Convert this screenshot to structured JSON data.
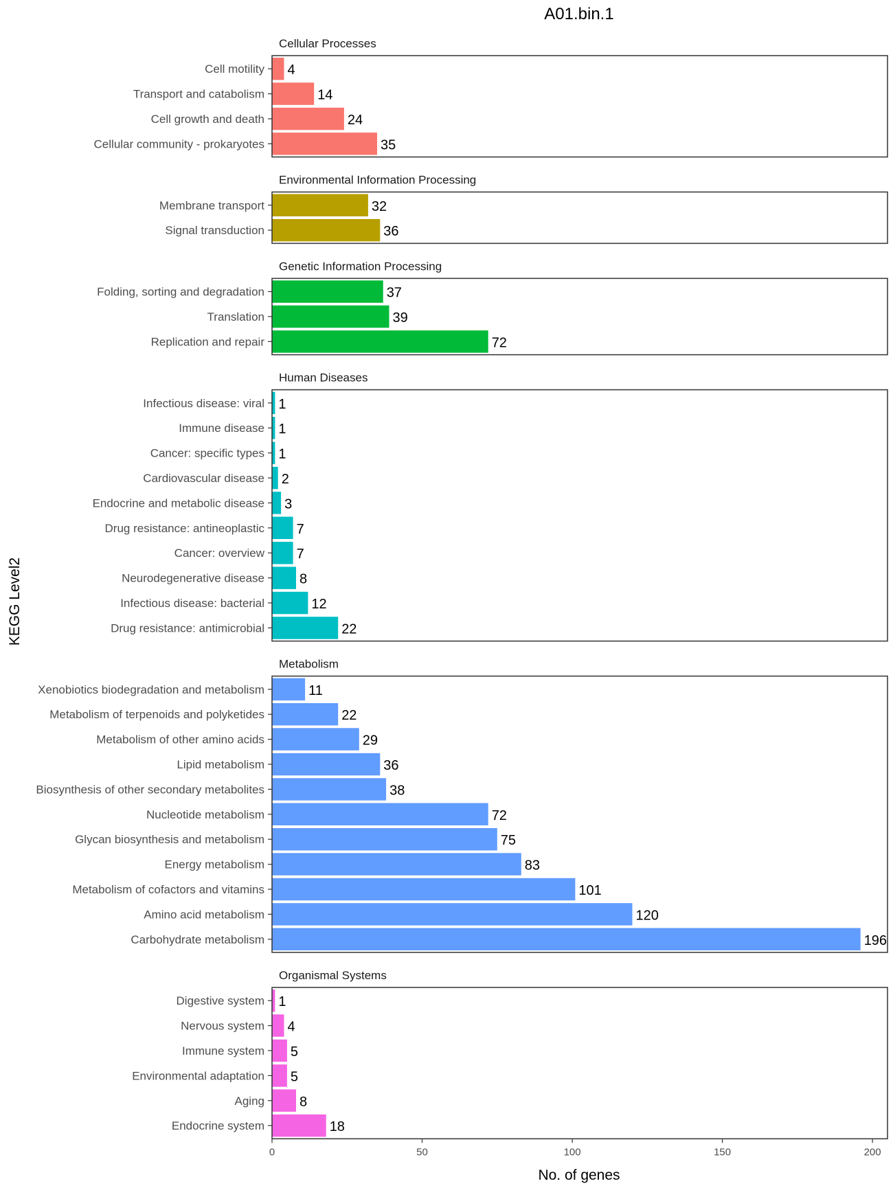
{
  "chart_data": {
    "type": "bar",
    "orientation": "horizontal",
    "title": "A01.bin.1",
    "xlabel": "No. of genes",
    "ylabel": "KEGG Level2",
    "xlim": [
      0,
      205
    ],
    "xticks": [
      0,
      50,
      100,
      150,
      200
    ],
    "grid": false,
    "panels": [
      {
        "name": "Cellular Processes",
        "color": "#F8766D",
        "categories": [
          "Cell motility",
          "Transport and catabolism",
          "Cell growth and death",
          "Cellular community - prokaryotes"
        ],
        "values": [
          4,
          14,
          24,
          35
        ]
      },
      {
        "name": "Environmental Information Processing",
        "color": "#B79F00",
        "categories": [
          "Membrane transport",
          "Signal transduction"
        ],
        "values": [
          32,
          36
        ]
      },
      {
        "name": "Genetic Information Processing",
        "color": "#00BA38",
        "categories": [
          "Folding, sorting and degradation",
          "Translation",
          "Replication and repair"
        ],
        "values": [
          37,
          39,
          72
        ]
      },
      {
        "name": "Human Diseases",
        "color": "#00BFC4",
        "categories": [
          "Infectious disease: viral",
          "Immune disease",
          "Cancer: specific types",
          "Cardiovascular disease",
          "Endocrine and metabolic disease",
          "Drug resistance: antineoplastic",
          "Cancer: overview",
          "Neurodegenerative disease",
          "Infectious disease: bacterial",
          "Drug resistance: antimicrobial"
        ],
        "values": [
          1,
          1,
          1,
          2,
          3,
          7,
          7,
          8,
          12,
          22
        ]
      },
      {
        "name": "Metabolism",
        "color": "#619CFF",
        "categories": [
          "Xenobiotics biodegradation and metabolism",
          "Metabolism of terpenoids and polyketides",
          "Metabolism of other amino acids",
          "Lipid metabolism",
          "Biosynthesis of other secondary metabolites",
          "Nucleotide metabolism",
          "Glycan biosynthesis and metabolism",
          "Energy metabolism",
          "Metabolism of cofactors and vitamins",
          "Amino acid metabolism",
          "Carbohydrate metabolism"
        ],
        "values": [
          11,
          22,
          29,
          36,
          38,
          72,
          75,
          83,
          101,
          120,
          196
        ]
      },
      {
        "name": "Organismal Systems",
        "color": "#F564E3",
        "categories": [
          "Digestive system",
          "Nervous system",
          "Immune system",
          "Environmental adaptation",
          "Aging",
          "Endocrine system"
        ],
        "values": [
          1,
          4,
          5,
          5,
          8,
          18
        ]
      }
    ]
  }
}
